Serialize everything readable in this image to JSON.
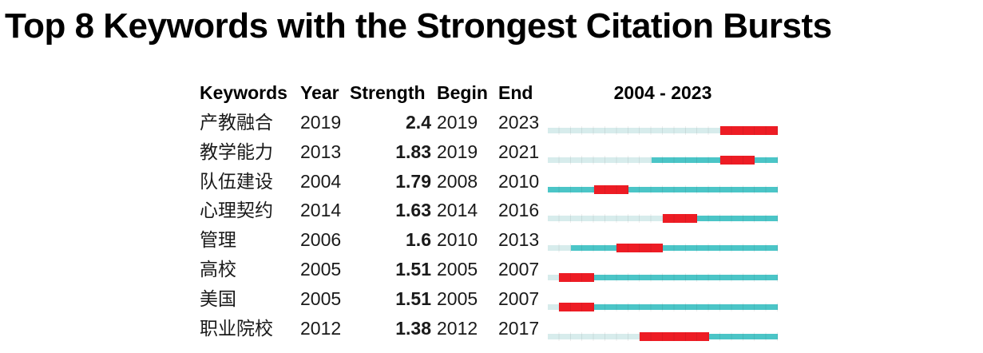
{
  "title": "Top 8 Keywords with the Strongest Citation Bursts",
  "table": {
    "headers": {
      "keywords": "Keywords",
      "year": "Year",
      "strength": "Strength",
      "begin": "Begin",
      "end": "End"
    },
    "timeline_header": "2004 - 2023"
  },
  "colors": {
    "burst": "#ed1c24",
    "active": "#4bc5c7",
    "inactive": "#d7ecec",
    "text": "#1a1a1a",
    "title_text": "#000000"
  },
  "chart_data": {
    "type": "table",
    "subtype": "citation-burst-timeline",
    "title": "Top 8 Keywords with the Strongest Citation Bursts",
    "timeline": {
      "start_year": 2004,
      "end_year": 2023,
      "label": "2004 - 2023"
    },
    "columns": [
      "Keywords",
      "Year",
      "Strength",
      "Begin",
      "End"
    ],
    "rows": [
      {
        "keyword": "产教融合",
        "year": 2019,
        "strength": "2.4",
        "begin": 2019,
        "end": 2023
      },
      {
        "keyword": "教学能力",
        "year": 2013,
        "strength": "1.83",
        "begin": 2019,
        "end": 2021
      },
      {
        "keyword": "队伍建设",
        "year": 2004,
        "strength": "1.79",
        "begin": 2008,
        "end": 2010
      },
      {
        "keyword": "心理契约",
        "year": 2014,
        "strength": "1.63",
        "begin": 2014,
        "end": 2016
      },
      {
        "keyword": "管理",
        "year": 2006,
        "strength": "1.6",
        "begin": 2010,
        "end": 2013
      },
      {
        "keyword": "高校",
        "year": 2005,
        "strength": "1.51",
        "begin": 2005,
        "end": 2007
      },
      {
        "keyword": "美国",
        "year": 2005,
        "strength": "1.51",
        "begin": 2005,
        "end": 2007
      },
      {
        "keyword": "职业院校",
        "year": 2012,
        "strength": "1.38",
        "begin": 2012,
        "end": 2017
      }
    ],
    "bar_semantics": {
      "inactive": "years before keyword first appears (pale)",
      "active": "keyword present, no burst (teal)",
      "burst": "citation burst interval Begin–End (red)"
    }
  }
}
